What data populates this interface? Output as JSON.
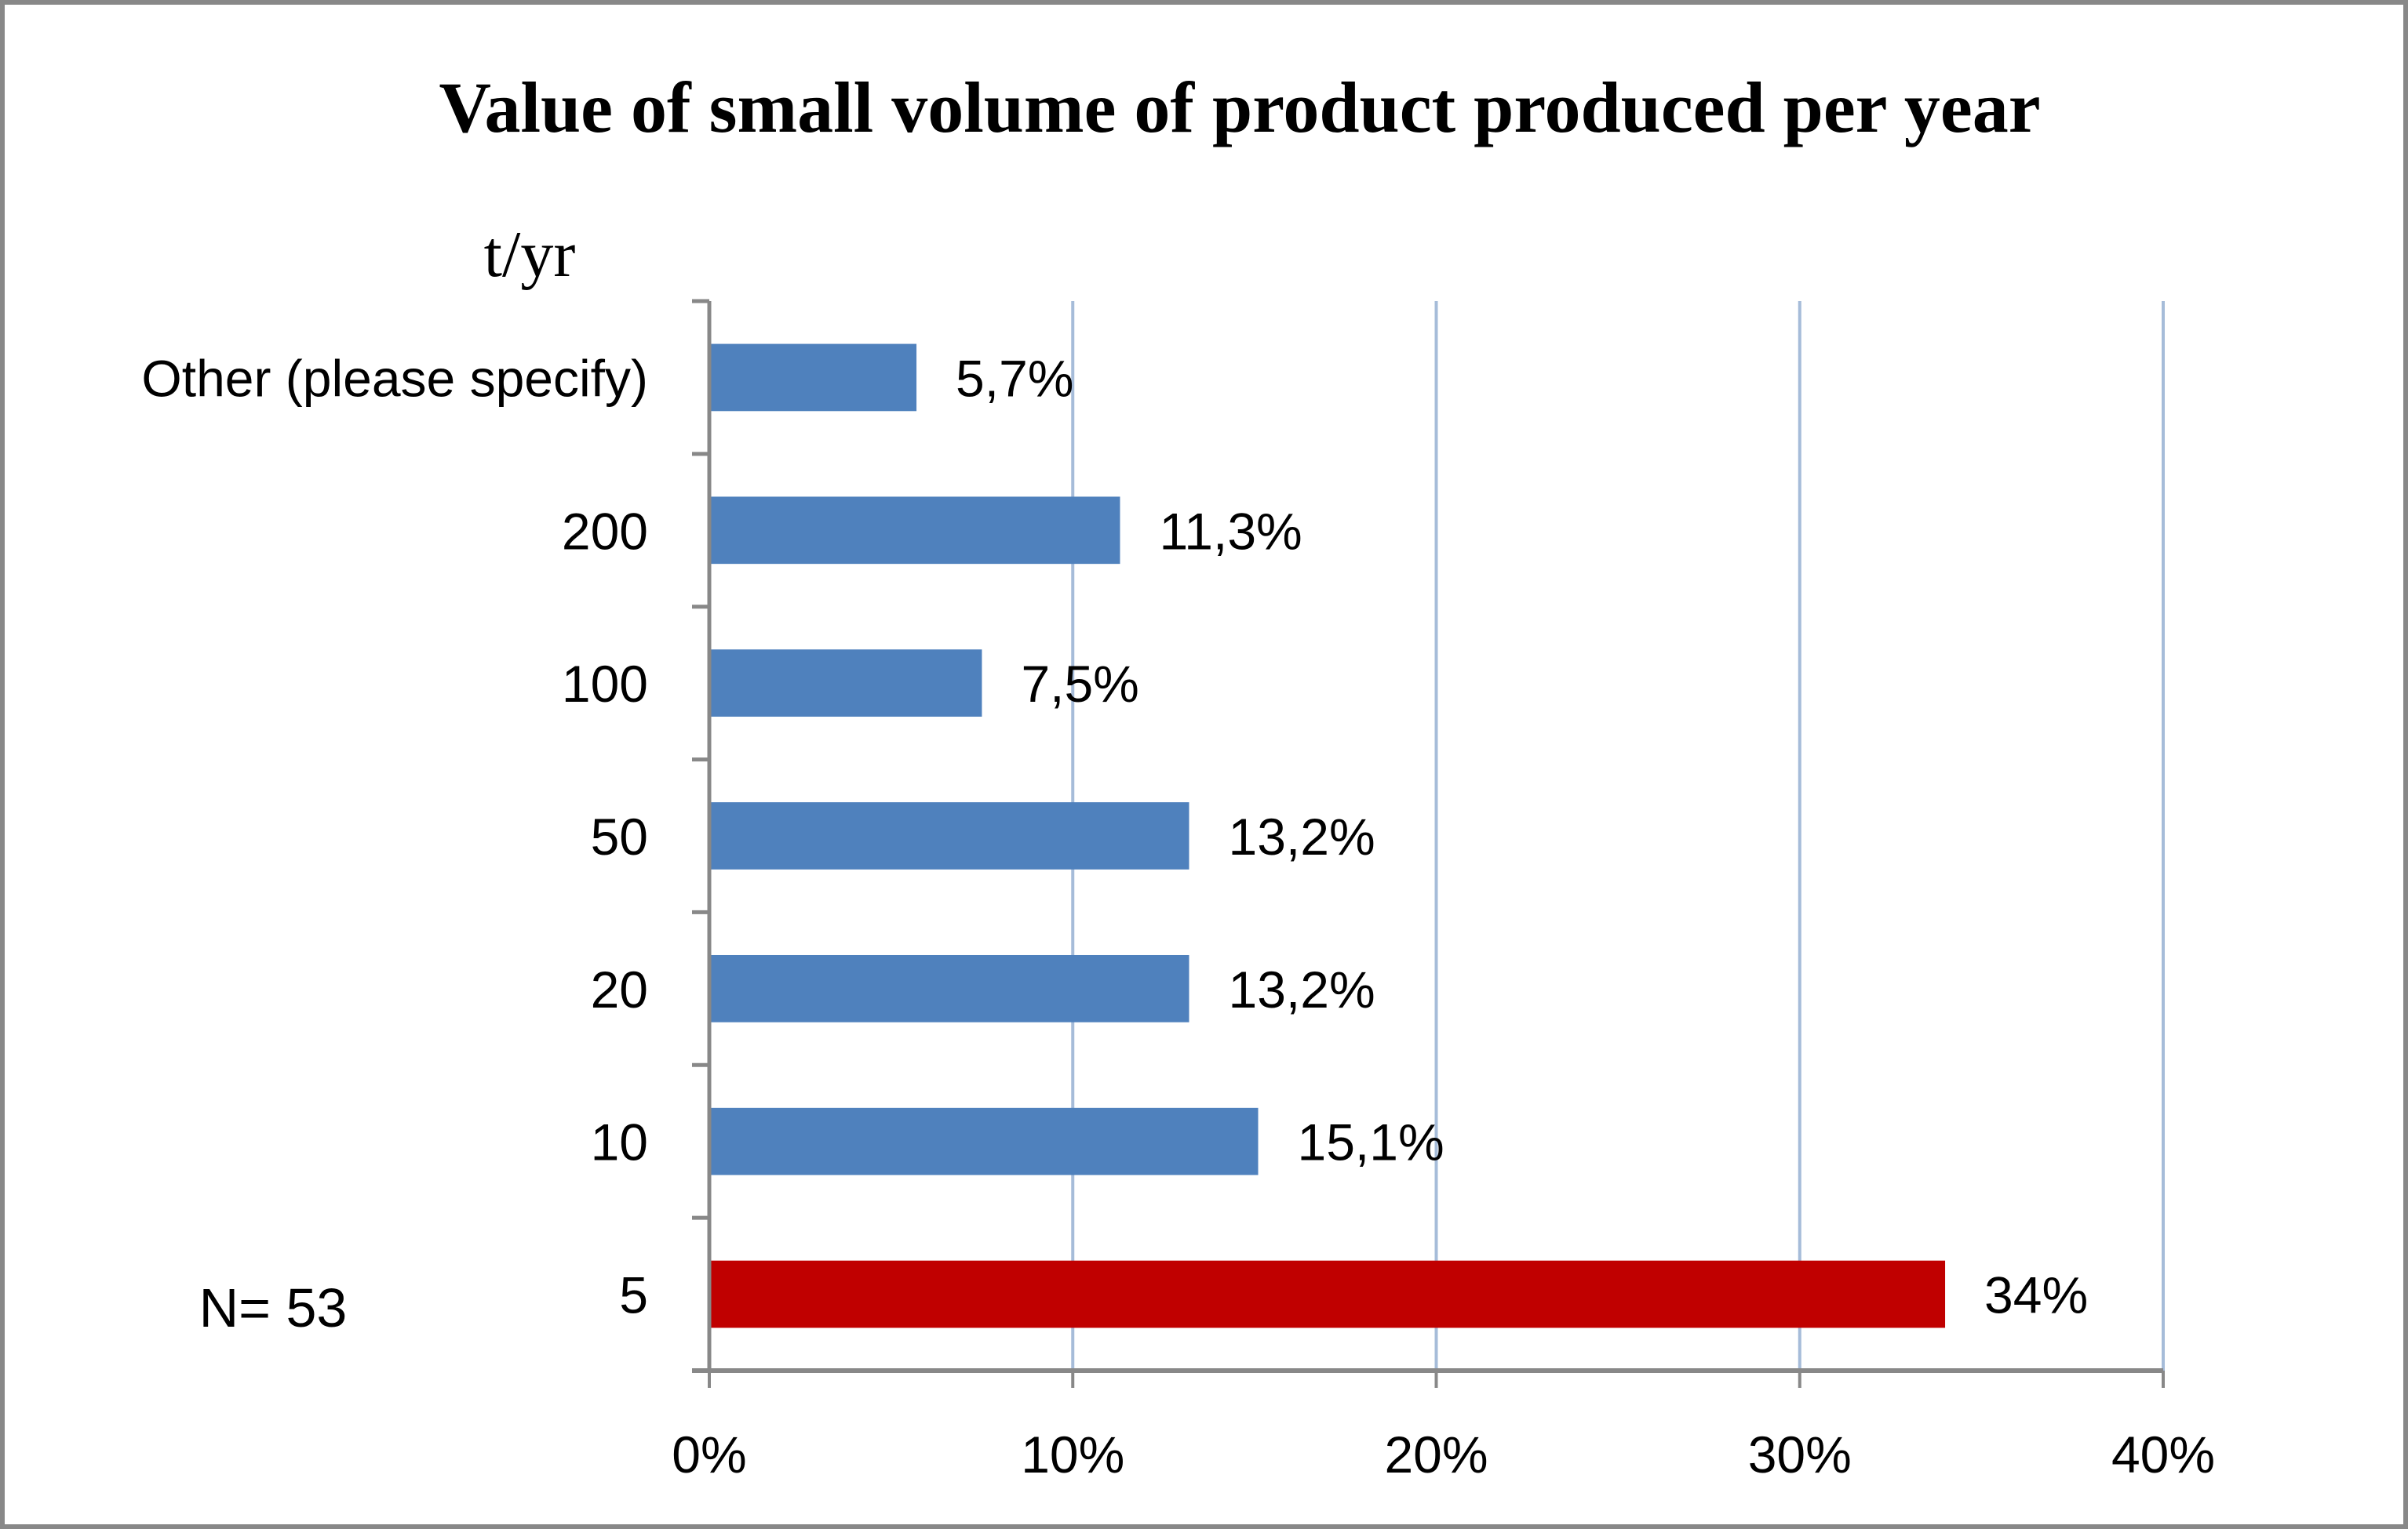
{
  "chart_data": {
    "type": "bar",
    "orientation": "horizontal",
    "title": "Value of small volume of product produced per year",
    "ylabel": "t/yr",
    "xlabel": "",
    "categories": [
      "Other (please specify)",
      "200",
      "100",
      "50",
      "20",
      "10",
      "5"
    ],
    "values": [
      5.7,
      11.3,
      7.5,
      13.2,
      13.2,
      15.1,
      34
    ],
    "value_labels": [
      "5,7%",
      "11,3%",
      "7,5%",
      "13,2%",
      "13,2%",
      "15,1%",
      "34%"
    ],
    "bar_colors": [
      "#4f81bd",
      "#4f81bd",
      "#4f81bd",
      "#4f81bd",
      "#4f81bd",
      "#4f81bd",
      "#c00000"
    ],
    "highlight_category": "5",
    "xlim": [
      0,
      40
    ],
    "xticks": [
      0,
      10,
      20,
      30,
      40
    ],
    "xtick_labels": [
      "0%",
      "10%",
      "20%",
      "30%",
      "40%"
    ],
    "grid": "vertical",
    "gridline_color": "#a6bcd9",
    "axis_color": "#888888",
    "legend": "none",
    "annotation": "N= 53"
  }
}
